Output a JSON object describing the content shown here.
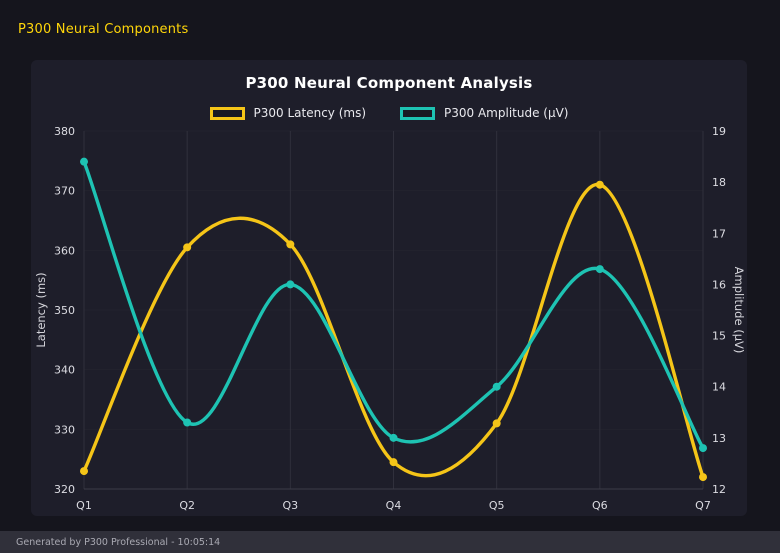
{
  "page": {
    "heading": "P300 Neural Components",
    "footer": "Generated by P300 Professional - 10:05:14"
  },
  "chart_data": {
    "type": "line",
    "title": "P300 Neural Component Analysis",
    "categories": [
      "Q1",
      "Q2",
      "Q3",
      "Q4",
      "Q5",
      "Q6",
      "Q7"
    ],
    "series": [
      {
        "name": "P300 Latency (ms)",
        "axis": "left",
        "color": "#f5c518",
        "values": [
          323,
          360.5,
          361,
          324.5,
          331,
          371,
          322
        ]
      },
      {
        "name": "P300 Amplitude (μV)",
        "axis": "right",
        "color": "#1ec3b3",
        "values": [
          18.4,
          13.3,
          16.0,
          13.0,
          14.0,
          16.3,
          12.8
        ]
      }
    ],
    "left_axis": {
      "label": "Latency (ms)",
      "min": 320,
      "max": 380,
      "step": 10
    },
    "right_axis": {
      "label": "Amplitude (μV)",
      "min": 12,
      "max": 19,
      "step": 1
    },
    "grid": true,
    "legend_position": "top",
    "colors": {
      "background": "#15151d",
      "panel": "#1e1e2a",
      "grid_vertical": "#30303c",
      "grid_horizontal": "#23232e",
      "baseline": "#3c3c48",
      "heading_accent": "#ffd60a"
    }
  }
}
